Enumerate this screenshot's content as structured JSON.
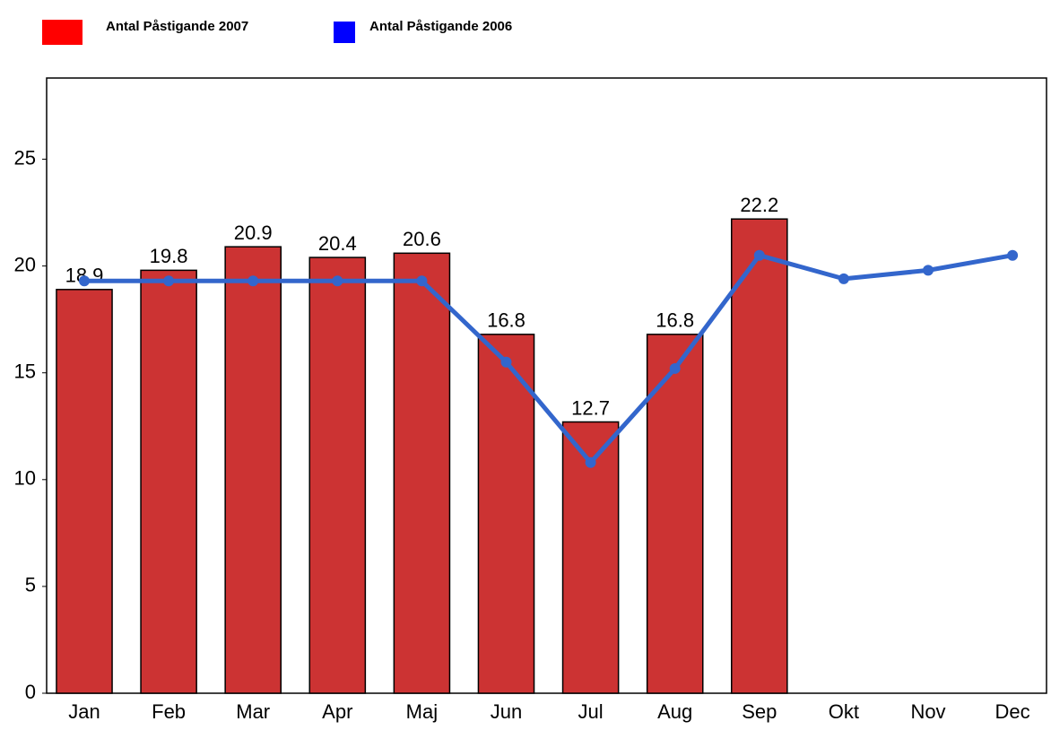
{
  "chart_data": {
    "type": "bar_line",
    "categories": [
      "Jan",
      "Feb",
      "Mar",
      "Apr",
      "Maj",
      "Jun",
      "Jul",
      "Aug",
      "Sep",
      "Okt",
      "Nov",
      "Dec"
    ],
    "series": [
      {
        "name": "Antal Påstigande 2007",
        "type": "bar",
        "color": "#cc3333",
        "legend_color": "#ff0000",
        "values": [
          18.9,
          19.8,
          20.9,
          20.4,
          20.6,
          16.8,
          12.7,
          16.8,
          22.2,
          null,
          null,
          null
        ]
      },
      {
        "name": "Antal Påstigande 2006",
        "type": "line",
        "color": "#3366cc",
        "legend_color": "#0000ff",
        "values": [
          19.3,
          19.3,
          19.3,
          19.3,
          19.3,
          15.5,
          10.8,
          15.2,
          20.5,
          19.4,
          19.8,
          20.5
        ]
      }
    ],
    "ylim": [
      0,
      28.8
    ],
    "yticks": [
      0,
      5,
      10,
      15,
      20,
      25
    ],
    "grid": false,
    "legend": "top-left"
  }
}
